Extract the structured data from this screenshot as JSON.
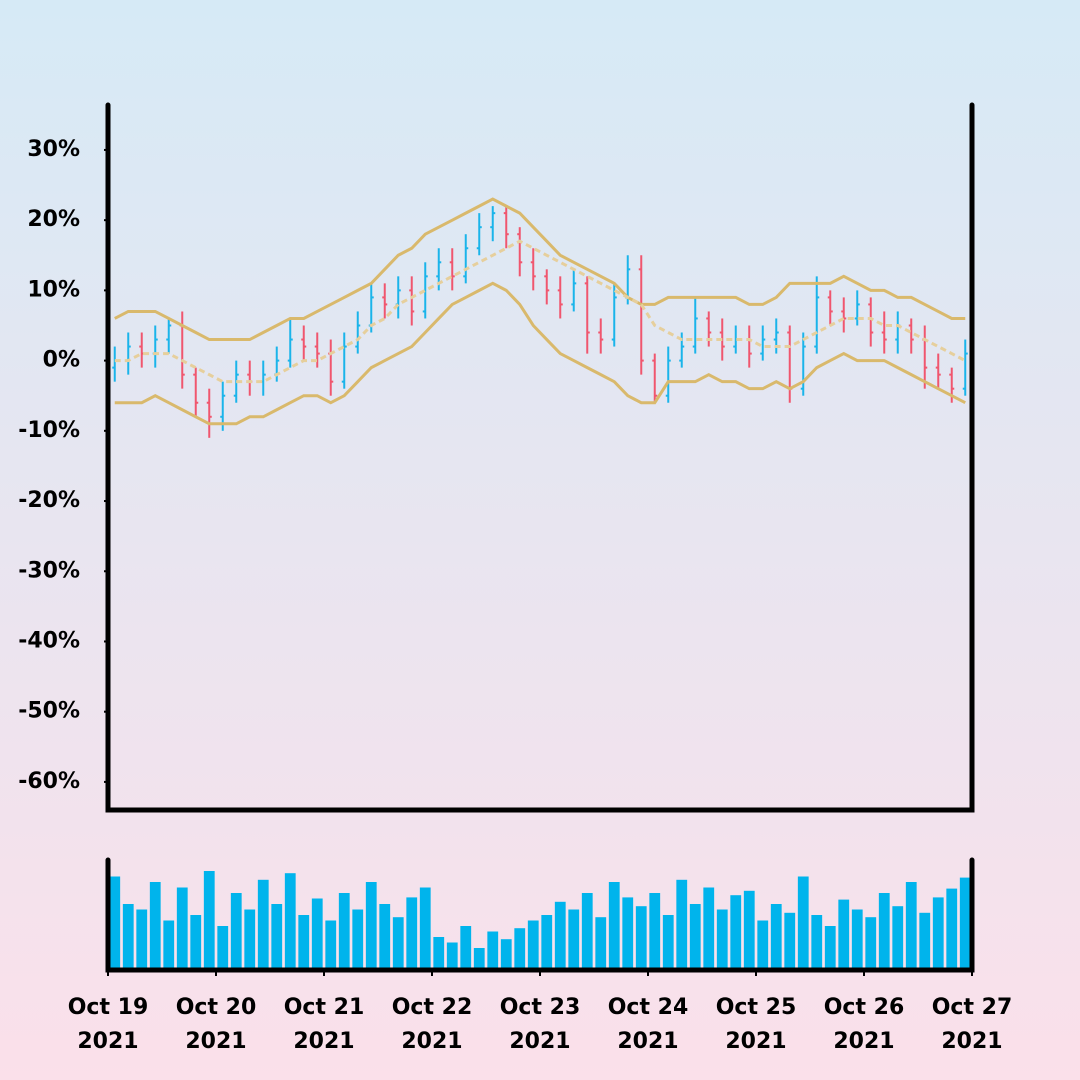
{
  "chart_data": {
    "type": "ohlc",
    "up_color": "#1ab4ea",
    "down_color": "#f0566e",
    "open": [
      -1,
      0,
      2,
      1,
      3,
      5,
      -2,
      -6,
      -8,
      -5,
      -2,
      -3,
      -2,
      0,
      3,
      2,
      1,
      -3,
      2,
      5,
      9,
      8,
      10,
      7,
      12,
      14,
      12,
      16,
      19,
      21,
      18,
      14,
      12,
      10,
      8,
      11,
      4,
      3,
      9,
      13,
      0,
      -5,
      0,
      2,
      6,
      4,
      2,
      3,
      1,
      3,
      4,
      -4,
      2,
      9,
      7,
      6,
      8,
      4,
      3,
      5,
      3,
      -1,
      -2,
      -4
    ],
    "high": [
      2,
      4,
      4,
      5,
      6,
      7,
      -1,
      -4,
      -3,
      0,
      0,
      0,
      2,
      6,
      5,
      4,
      3,
      4,
      7,
      11,
      11,
      12,
      12,
      14,
      16,
      16,
      18,
      21,
      22,
      22,
      19,
      16,
      13,
      12,
      13,
      12,
      6,
      11,
      15,
      15,
      1,
      2,
      4,
      9,
      7,
      6,
      5,
      5,
      5,
      6,
      5,
      4,
      12,
      10,
      9,
      10,
      9,
      7,
      7,
      6,
      5,
      1,
      -1,
      3
    ],
    "low": [
      -3,
      -2,
      -1,
      -1,
      1,
      -4,
      -8,
      -11,
      -10,
      -6,
      -5,
      -5,
      -3,
      -1,
      0,
      -1,
      -5,
      -4,
      1,
      4,
      6,
      6,
      5,
      6,
      10,
      10,
      11,
      15,
      17,
      16,
      12,
      10,
      8,
      6,
      7,
      1,
      1,
      2,
      8,
      -2,
      -6,
      -6,
      -1,
      1,
      2,
      0,
      1,
      -1,
      0,
      1,
      -6,
      -5,
      1,
      5,
      4,
      5,
      2,
      1,
      1,
      1,
      -4,
      -4,
      -6,
      -5
    ],
    "close": [
      0,
      2,
      1,
      3,
      5,
      -2,
      -6,
      -8,
      -5,
      -2,
      -3,
      -2,
      0,
      3,
      2,
      1,
      -3,
      2,
      5,
      9,
      8,
      10,
      7,
      12,
      14,
      12,
      16,
      19,
      21,
      18,
      14,
      12,
      10,
      8,
      11,
      4,
      3,
      9,
      13,
      0,
      -5,
      0,
      2,
      6,
      4,
      2,
      3,
      1,
      3,
      4,
      -4,
      2,
      9,
      7,
      6,
      8,
      4,
      3,
      5,
      3,
      -1,
      -2,
      -4,
      1
    ],
    "bands": [
      {
        "color": "#d9b96c",
        "dashed": false,
        "values": [
          6,
          7,
          7,
          7,
          6,
          5,
          4,
          3,
          3,
          3,
          3,
          4,
          5,
          6,
          6,
          7,
          8,
          9,
          10,
          11,
          13,
          15,
          16,
          18,
          19,
          20,
          21,
          22,
          23,
          22,
          21,
          19,
          17,
          15,
          14,
          13,
          12,
          11,
          9,
          8,
          8,
          9,
          9,
          9,
          9,
          9,
          9,
          8,
          8,
          9,
          11,
          11,
          11,
          11,
          12,
          11,
          10,
          10,
          9,
          9,
          8,
          7,
          6,
          6
        ]
      },
      {
        "color": "#e6cf9c",
        "dashed": true,
        "values": [
          0,
          0,
          1,
          1,
          1,
          0,
          -1,
          -2,
          -3,
          -3,
          -3,
          -3,
          -2,
          -1,
          0,
          0,
          1,
          2,
          3,
          5,
          6,
          8,
          9,
          10,
          11,
          12,
          13,
          14,
          15,
          16,
          17,
          16,
          15,
          14,
          13,
          12,
          11,
          10,
          9,
          8,
          5,
          4,
          3,
          3,
          3,
          3,
          3,
          3,
          2,
          2,
          2,
          3,
          4,
          5,
          6,
          6,
          6,
          5,
          5,
          4,
          3,
          2,
          1,
          0
        ]
      },
      {
        "color": "#d9b96c",
        "dashed": false,
        "values": [
          -6,
          -6,
          -6,
          -5,
          -6,
          -7,
          -8,
          -9,
          -9,
          -9,
          -8,
          -8,
          -7,
          -6,
          -5,
          -5,
          -6,
          -5,
          -3,
          -1,
          0,
          1,
          2,
          4,
          6,
          8,
          9,
          10,
          11,
          10,
          8,
          5,
          3,
          1,
          0,
          -1,
          -2,
          -3,
          -5,
          -6,
          -6,
          -3,
          -3,
          -3,
          -2,
          -3,
          -3,
          -4,
          -4,
          -3,
          -4,
          -3,
          -1,
          0,
          1,
          0,
          0,
          0,
          -1,
          -2,
          -3,
          -4,
          -5,
          -6
        ]
      }
    ],
    "ylim": [
      -64,
      36.4
    ],
    "yticks": [
      {
        "value": 30,
        "label": "30%"
      },
      {
        "value": 20,
        "label": "20%"
      },
      {
        "value": 10,
        "label": "10%"
      },
      {
        "value": 0,
        "label": "0%"
      },
      {
        "value": -10,
        "label": "-10%"
      },
      {
        "value": -20,
        "label": "-20%"
      },
      {
        "value": -30,
        "label": "-30%"
      },
      {
        "value": -40,
        "label": "-40%"
      },
      {
        "value": -50,
        "label": "-50%"
      },
      {
        "value": -60,
        "label": "-60%"
      }
    ],
    "xlim": [
      "2021-10-19",
      "2021-10-27"
    ],
    "xticks": [
      {
        "value": "2021-10-19",
        "label": [
          "Oct 19",
          "2021"
        ]
      },
      {
        "value": "2021-10-20",
        "label": [
          "Oct 20",
          "2021"
        ]
      },
      {
        "value": "2021-10-21",
        "label": [
          "Oct 21",
          "2021"
        ]
      },
      {
        "value": "2021-10-22",
        "label": [
          "Oct 22",
          "2021"
        ]
      },
      {
        "value": "2021-10-23",
        "label": [
          "Oct 23",
          "2021"
        ]
      },
      {
        "value": "2021-10-24",
        "label": [
          "Oct 24",
          "2021"
        ]
      },
      {
        "value": "2021-10-25",
        "label": [
          "Oct 25",
          "2021"
        ]
      },
      {
        "value": "2021-10-26",
        "label": [
          "Oct 26",
          "2021"
        ]
      },
      {
        "value": "2021-10-27",
        "label": [
          "Oct 27",
          "2021"
        ]
      }
    ],
    "volume": {
      "color": "#00b4ec",
      "ylim": [
        0,
        100
      ],
      "values": [
        85,
        60,
        55,
        80,
        45,
        75,
        50,
        90,
        40,
        70,
        55,
        82,
        60,
        88,
        50,
        65,
        45,
        70,
        55,
        80,
        60,
        48,
        66,
        75,
        30,
        25,
        40,
        20,
        35,
        28,
        38,
        45,
        50,
        62,
        55,
        70,
        48,
        80,
        66,
        58,
        70,
        50,
        82,
        60,
        75,
        55,
        68,
        72,
        45,
        60,
        52,
        85,
        50,
        40,
        64,
        55,
        48,
        70,
        58,
        80,
        52,
        66,
        74,
        84
      ]
    }
  }
}
